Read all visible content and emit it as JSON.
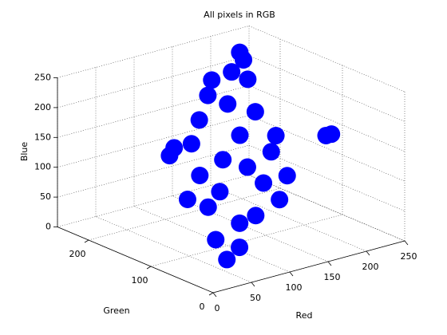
{
  "chart_data": {
    "type": "scatter3d",
    "title": "All pixels in RGB",
    "xlabel": "Red",
    "ylabel": "Green",
    "zlabel": "Blue",
    "color": "#0000ff",
    "grid": true,
    "xlim": [
      0,
      250
    ],
    "ylim": [
      0,
      250
    ],
    "zlim": [
      0,
      250
    ],
    "xticks": [
      0,
      50,
      100,
      150,
      200,
      250
    ],
    "yticks": [
      0,
      100,
      200
    ],
    "zticks": [
      0,
      50,
      100,
      150,
      200,
      250
    ],
    "x": [
      194,
      172,
      189,
      142,
      149,
      181,
      103,
      79,
      147,
      179,
      186,
      163,
      123,
      65,
      72,
      57,
      61,
      84,
      151,
      111,
      139,
      90,
      98,
      128,
      194,
      194,
      43,
      195,
      188,
      65,
      71
    ],
    "y": [
      196,
      182,
      177,
      177,
      160,
      155,
      149,
      132,
      138,
      127,
      110,
      94,
      83,
      88,
      110,
      66,
      53,
      61,
      105,
      121,
      116,
      100,
      78,
      166,
      190,
      138,
      94,
      50,
      50,
      150,
      150
    ],
    "z": [
      249,
      230,
      214,
      229,
      194,
      172,
      188,
      164,
      152,
      118,
      83,
      58,
      50,
      82,
      123,
      40,
      11,
      20,
      85,
      131,
      111,
      94,
      48,
      213,
      239,
      135,
      100,
      176,
      176,
      141,
      152
    ]
  }
}
